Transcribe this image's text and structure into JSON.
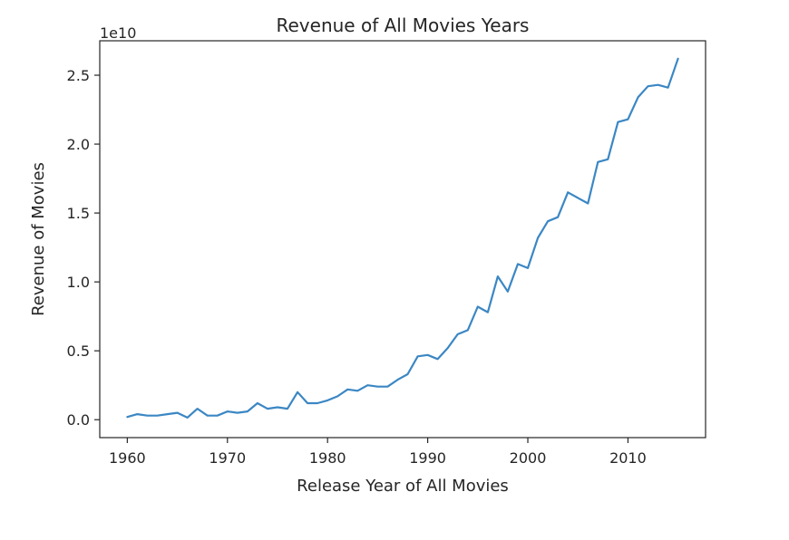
{
  "chart_data": {
    "type": "line",
    "title": "Revenue of All Movies Years",
    "xlabel": "Release Year of All Movies",
    "ylabel": "Revenue of Movies",
    "y_offset_text": "1e10",
    "xlim": [
      1957.25,
      2017.75
    ],
    "ylim": [
      -0.13,
      2.75
    ],
    "y_scale_note": "y values in units of 1e10",
    "xticks": [
      1960,
      1970,
      1980,
      1990,
      2000,
      2010
    ],
    "xtick_labels": [
      "1960",
      "1970",
      "1980",
      "1990",
      "2000",
      "2010"
    ],
    "yticks": [
      0.0,
      0.5,
      1.0,
      1.5,
      2.0,
      2.5
    ],
    "ytick_labels": [
      "0.0",
      "0.5",
      "1.0",
      "1.5",
      "2.0",
      "2.5"
    ],
    "grid": false,
    "legend": "none",
    "line_color": "#3b87c4",
    "series": [
      {
        "x": [
          1960,
          1961,
          1962,
          1963,
          1964,
          1965,
          1966,
          1967,
          1968,
          1969,
          1970,
          1971,
          1972,
          1973,
          1974,
          1975,
          1976,
          1977,
          1978,
          1979,
          1980,
          1981,
          1982,
          1983,
          1984,
          1985,
          1986,
          1987,
          1988,
          1989,
          1990,
          1991,
          1992,
          1993,
          1994,
          1995,
          1996,
          1997,
          1998,
          1999,
          2000,
          2001,
          2002,
          2003,
          2004,
          2005,
          2006,
          2007,
          2008,
          2009,
          2010,
          2011,
          2012,
          2013,
          2014,
          2015
        ],
        "values": [
          0.02,
          0.04,
          0.03,
          0.03,
          0.04,
          0.05,
          0.015,
          0.08,
          0.03,
          0.03,
          0.06,
          0.05,
          0.06,
          0.12,
          0.08,
          0.09,
          0.08,
          0.2,
          0.12,
          0.12,
          0.14,
          0.17,
          0.22,
          0.21,
          0.25,
          0.24,
          0.24,
          0.29,
          0.33,
          0.46,
          0.47,
          0.44,
          0.52,
          0.62,
          0.65,
          0.82,
          0.78,
          1.04,
          0.93,
          1.13,
          1.1,
          1.32,
          1.44,
          1.47,
          1.65,
          1.61,
          1.57,
          1.87,
          1.89,
          2.16,
          2.18,
          2.34,
          2.42,
          2.43,
          2.41,
          2.62
        ]
      }
    ]
  }
}
